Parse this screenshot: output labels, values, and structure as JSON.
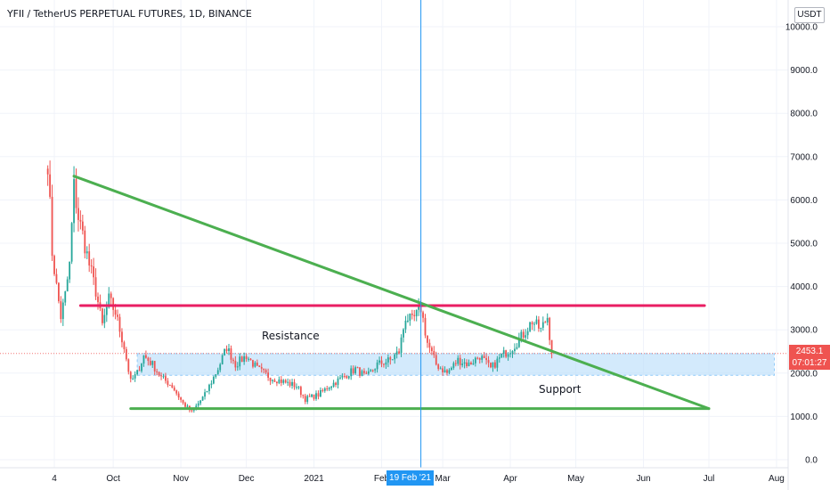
{
  "header": {
    "title": "YFII / TetherUS PERPETUAL FUTURES, 1D, BINANCE",
    "currency_button": "USDT"
  },
  "annotations": {
    "resistance_label": "Resistance",
    "support_label": "Support"
  },
  "price_badge": {
    "price": "2453.1",
    "countdown": "07:01:27"
  },
  "crosshair_date": "19 Feb '21",
  "colors": {
    "up_candle": "#26a69a",
    "down_candle": "#ef5350",
    "trendline": "#4caf50",
    "resistance_line": "#e91e63",
    "range_fill": "#bbdefb",
    "crosshair": "#2196f3",
    "grid": "#f0f3fa"
  },
  "chart_data": {
    "type": "candlestick",
    "y_axis": {
      "ticks": [
        "0.0",
        "1000.0",
        "2000.0",
        "3000.0",
        "4000.0",
        "5000.0",
        "6000.0",
        "7000.0",
        "8000.0",
        "9000.0",
        "10000.0"
      ],
      "ylim": [
        0,
        10000
      ]
    },
    "x_axis": {
      "ticks": [
        "4",
        "Oct",
        "Nov",
        "Dec",
        "2021",
        "Feb",
        "Mar",
        "Apr",
        "May",
        "Jun",
        "Jul",
        "Aug"
      ],
      "tick_dates": [
        "2020-09-04",
        "2020-10-01",
        "2020-11-01",
        "2020-12-01",
        "2021-01-01",
        "2021-02-01",
        "2021-03-01",
        "2021-04-01",
        "2021-05-01",
        "2021-06-01",
        "2021-07-01",
        "2021-08-01"
      ]
    },
    "last_price": 2453.1,
    "close_path": [
      [
        "2020-09-01",
        6900
      ],
      [
        "2020-09-03",
        4800
      ],
      [
        "2020-09-05",
        4000
      ],
      [
        "2020-09-07",
        3300
      ],
      [
        "2020-09-09",
        3800
      ],
      [
        "2020-09-11",
        4500
      ],
      [
        "2020-09-13",
        6300
      ],
      [
        "2020-09-15",
        5600
      ],
      [
        "2020-09-17",
        5200
      ],
      [
        "2020-09-20",
        4500
      ],
      [
        "2020-09-23",
        3900
      ],
      [
        "2020-09-26",
        3100
      ],
      [
        "2020-09-29",
        3700
      ],
      [
        "2020-10-02",
        3400
      ],
      [
        "2020-10-06",
        2600
      ],
      [
        "2020-10-09",
        1800
      ],
      [
        "2020-10-12",
        2000
      ],
      [
        "2020-10-15",
        2400
      ],
      [
        "2020-10-19",
        2200
      ],
      [
        "2020-10-23",
        1900
      ],
      [
        "2020-10-28",
        1700
      ],
      [
        "2020-11-02",
        1300
      ],
      [
        "2020-11-06",
        1100
      ],
      [
        "2020-11-12",
        1500
      ],
      [
        "2020-11-18",
        2100
      ],
      [
        "2020-11-22",
        2600
      ],
      [
        "2020-11-26",
        2200
      ],
      [
        "2020-12-01",
        2400
      ],
      [
        "2020-12-06",
        2100
      ],
      [
        "2020-12-12",
        1900
      ],
      [
        "2020-12-18",
        1800
      ],
      [
        "2020-12-24",
        1700
      ],
      [
        "2020-12-28",
        1400
      ],
      [
        "2021-01-03",
        1500
      ],
      [
        "2021-01-08",
        1700
      ],
      [
        "2021-01-14",
        1900
      ],
      [
        "2021-01-20",
        2100
      ],
      [
        "2021-01-25",
        1900
      ],
      [
        "2021-01-30",
        2200
      ],
      [
        "2021-02-05",
        2300
      ],
      [
        "2021-02-09",
        2500
      ],
      [
        "2021-02-12",
        3300
      ],
      [
        "2021-02-15",
        3200
      ],
      [
        "2021-02-19",
        3500
      ],
      [
        "2021-02-22",
        2700
      ],
      [
        "2021-02-26",
        2200
      ],
      [
        "2021-03-03",
        2000
      ],
      [
        "2021-03-08",
        2300
      ],
      [
        "2021-03-13",
        2200
      ],
      [
        "2021-03-18",
        2400
      ],
      [
        "2021-03-23",
        2100
      ],
      [
        "2021-03-28",
        2400
      ],
      [
        "2021-04-02",
        2600
      ],
      [
        "2021-04-07",
        2900
      ],
      [
        "2021-04-11",
        3200
      ],
      [
        "2021-04-15",
        3000
      ],
      [
        "2021-04-18",
        3300
      ],
      [
        "2021-04-20",
        2453.1
      ]
    ],
    "drawings": {
      "resistance_line": {
        "from": [
          "2020-09-16",
          3560
        ],
        "to": [
          "2021-06-29",
          3560
        ]
      },
      "descending_trendline": {
        "from": [
          "2020-09-13",
          6550
        ],
        "to": [
          "2021-07-01",
          1180
        ]
      },
      "support_line": {
        "from": [
          "2020-10-09",
          1180
        ],
        "to": [
          "2021-07-01",
          1180
        ]
      },
      "range_box": {
        "from": "2020-10-12",
        "to": "2021-07-31",
        "low": 1950,
        "high": 2450
      },
      "crosshair_x": "2021-02-19"
    }
  }
}
